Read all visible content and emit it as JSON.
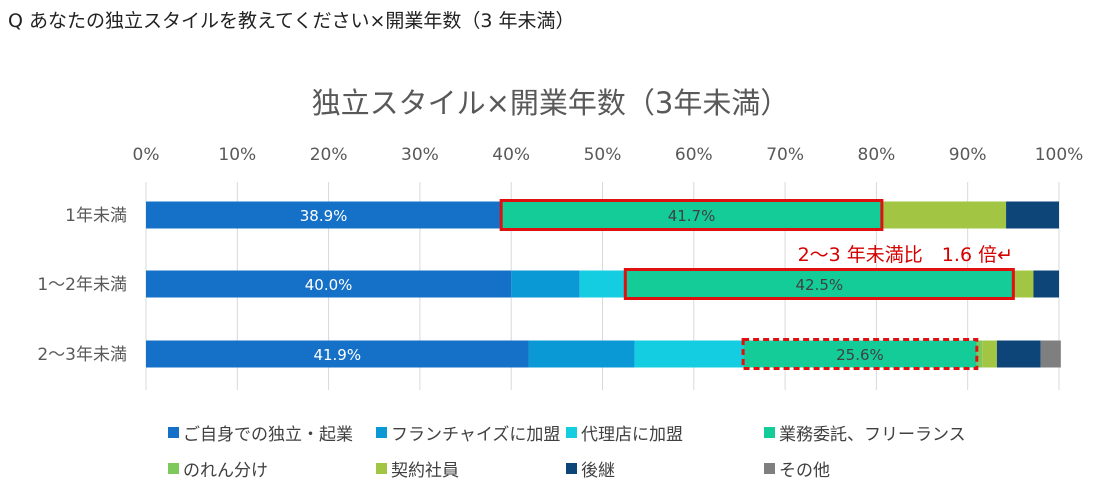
{
  "question": "Q あなたの独立スタイルを教えてください×開業年数（3 年未満）",
  "chart_data": {
    "type": "bar",
    "orientation": "horizontal",
    "stacked": true,
    "title": "独立スタイル×開業年数（3年未満）",
    "categories": [
      "1年未満",
      "1～2年未満",
      "2～3年未満"
    ],
    "xlim": [
      0,
      100
    ],
    "x_ticks": [
      "0%",
      "10%",
      "20%",
      "30%",
      "40%",
      "50%",
      "60%",
      "70%",
      "80%",
      "90%",
      "100%"
    ],
    "series": [
      {
        "name": "ご自身での独立・起業",
        "color": "#1570c8",
        "values": [
          38.9,
          40.0,
          41.9
        ]
      },
      {
        "name": "フランチャイズに加盟",
        "color": "#0b99d6",
        "values": [
          0.0,
          7.5,
          11.6
        ]
      },
      {
        "name": "代理店に加盟",
        "color": "#14cde0",
        "values": [
          0.0,
          5.0,
          11.9
        ]
      },
      {
        "name": "業務委託、フリーランス",
        "color": "#14cc98",
        "values": [
          41.7,
          42.5,
          25.6
        ]
      },
      {
        "name": "のれん分け",
        "color": "#7dc95c",
        "values": [
          0.0,
          0.0,
          0.6
        ]
      },
      {
        "name": "契約社員",
        "color": "#a2c544",
        "values": [
          13.6,
          2.2,
          1.6
        ]
      },
      {
        "name": "後継",
        "color": "#0e4579",
        "values": [
          5.8,
          2.8,
          4.8
        ]
      },
      {
        "name": "その他",
        "color": "#7f7f7f",
        "values": [
          0.0,
          0.0,
          2.2
        ]
      }
    ],
    "data_labels": [
      {
        "category": "1年未満",
        "series": "ご自身での独立・起業",
        "text": "38.9%"
      },
      {
        "category": "1年未満",
        "series": "業務委託、フリーランス",
        "text": "41.7%"
      },
      {
        "category": "1～2年未満",
        "series": "ご自身での独立・起業",
        "text": "40.0%"
      },
      {
        "category": "1～2年未満",
        "series": "業務委託、フリーランス",
        "text": "42.5%"
      },
      {
        "category": "2～3年未満",
        "series": "ご自身での独立・起業",
        "text": "41.9%"
      },
      {
        "category": "2～3年未満",
        "series": "業務委託、フリーランス",
        "text": "25.6%"
      }
    ],
    "annotation": "2～3 年未満比　1.6 倍↵",
    "highlight_color": "#e01010",
    "legend_position": "bottom"
  }
}
